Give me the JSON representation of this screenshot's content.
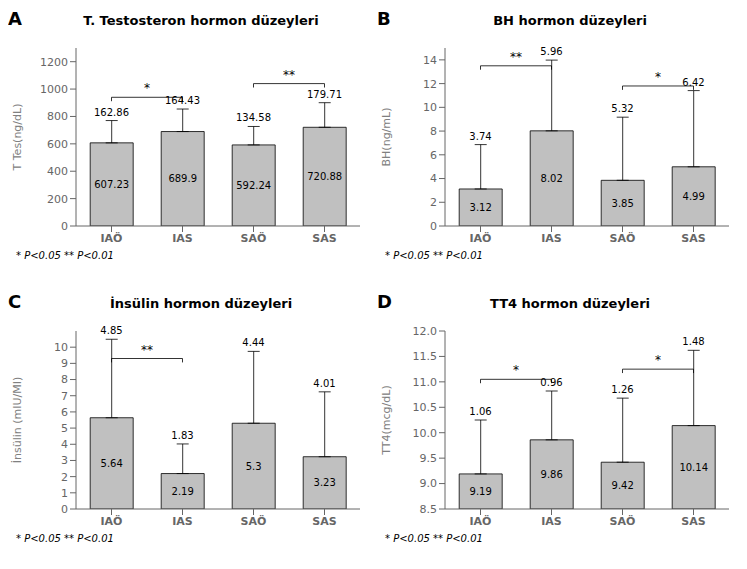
{
  "chart_data": [
    {
      "type": "bar",
      "panel": "A",
      "title": "T. Testosteron hormon düzeyleri",
      "ylabel": "T Tes(ng/dL)",
      "categories": [
        "IAÖ",
        "IAS",
        "SAÖ",
        "SAS"
      ],
      "values": [
        607.23,
        689.9,
        592.24,
        720.88
      ],
      "errors": [
        162.86,
        164.43,
        134.58,
        179.71
      ],
      "ylim": [
        0,
        1300
      ],
      "yticks": [
        0,
        200,
        400,
        600,
        800,
        1000,
        1200
      ],
      "color": "#c0c0c0",
      "data_labels": true,
      "grid": false,
      "annotations": [
        {
          "text": "*",
          "x1": "IAÖ",
          "x2": "IAS",
          "y": 940
        },
        {
          "text": "**",
          "x1": "SAÖ",
          "x2": "SAS",
          "y": 1040
        }
      ],
      "footnote": "* P<0.05   ** P<0.01"
    },
    {
      "type": "bar",
      "panel": "B",
      "title": "BH hormon düzeyleri",
      "ylabel": "BH(ng/mL)",
      "categories": [
        "IAÖ",
        "IAS",
        "SAÖ",
        "SAS"
      ],
      "values": [
        3.12,
        8.02,
        3.85,
        4.99
      ],
      "errors": [
        3.74,
        5.96,
        5.32,
        6.42
      ],
      "ylim": [
        0,
        15
      ],
      "yticks": [
        0,
        2,
        4,
        6,
        8,
        10,
        12,
        14
      ],
      "color": "#c0c0c0",
      "data_labels": true,
      "grid": false,
      "annotations": [
        {
          "text": "**",
          "x1": "IAÖ",
          "x2": "IAS",
          "y": 13.5
        },
        {
          "text": "*",
          "x1": "SAÖ",
          "x2": "SAS",
          "y": 11.8
        }
      ],
      "footnote": "* P<0.05   ** P<0.01"
    },
    {
      "type": "bar",
      "panel": "C",
      "title": "İnsülin hormon düzeyleri",
      "ylabel": "İnsülin (mIU/MI)",
      "categories": [
        "IAÖ",
        "IAS",
        "SAÖ",
        "SAS"
      ],
      "values": [
        5.64,
        2.19,
        5.3,
        3.23
      ],
      "errors": [
        4.85,
        1.83,
        4.44,
        4.01
      ],
      "ylim": [
        0,
        11
      ],
      "yticks": [
        0,
        1,
        2,
        3,
        4,
        5,
        6,
        7,
        8,
        9,
        10
      ],
      "color": "#c0c0c0",
      "data_labels": true,
      "grid": false,
      "annotations": [
        {
          "text": "**",
          "x1": "IAÖ",
          "x2": "IAS",
          "y": 9.3
        }
      ],
      "footnote": "* P<0.05   ** P<0.01"
    },
    {
      "type": "bar",
      "panel": "D",
      "title": "TT4 hormon düzeyleri",
      "ylabel": "TT4(mcg/dL)",
      "categories": [
        "IAÖ",
        "IAS",
        "SAÖ",
        "SAS"
      ],
      "values": [
        9.19,
        9.86,
        9.42,
        10.14
      ],
      "errors": [
        1.06,
        0.96,
        1.26,
        1.48
      ],
      "ylim": [
        8.5,
        12
      ],
      "yticks": [
        8.5,
        {
          "value": 9,
          "label": "9.0"
        },
        9.5,
        {
          "value": 10,
          "label": "10.0"
        },
        10.5,
        {
          "value": 11,
          "label": "11.0"
        },
        11.5,
        {
          "value": 12,
          "label": "12.0"
        }
      ],
      "color": "#c0c0c0",
      "data_labels": true,
      "grid": false,
      "annotations": [
        {
          "text": "*",
          "x1": "IAÖ",
          "x2": "IAS",
          "y": 11.05
        },
        {
          "text": "*",
          "x1": "SAÖ",
          "x2": "SAS",
          "y": 11.25
        }
      ],
      "footnote": "* P<0.05   ** P<0.01"
    }
  ]
}
